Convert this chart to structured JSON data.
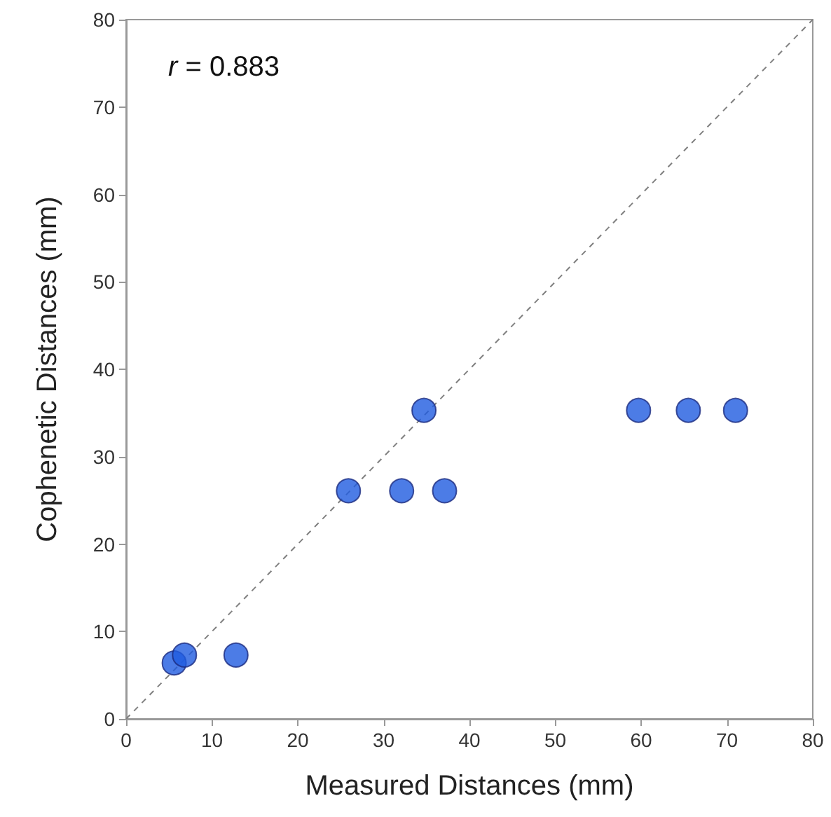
{
  "chart_data": {
    "type": "scatter",
    "xlabel": "Measured Distances (mm)",
    "ylabel": "Cophenetic Distances (mm)",
    "annotations": [
      "r = 0.883"
    ],
    "xlim": [
      0,
      80
    ],
    "ylim": [
      0,
      80
    ],
    "xticks": [
      0,
      10,
      20,
      30,
      40,
      50,
      60,
      70,
      80
    ],
    "yticks": [
      0,
      10,
      20,
      30,
      40,
      50,
      60,
      70,
      80
    ],
    "grid": false,
    "marker": "circle",
    "series": [
      {
        "color": "#1f5be0",
        "x": [
          5.6,
          6.8,
          12.8,
          25.9,
          32.1,
          37.1,
          34.7,
          59.7,
          65.5,
          71.0
        ],
        "values": [
          6.4,
          7.3,
          7.3,
          26.1,
          26.1,
          26.1,
          35.3,
          35.3,
          35.3,
          35.3
        ]
      },
      {
        "type": "line",
        "color": "#808080",
        "line_style": "dashed",
        "marker": "none",
        "x": [
          0,
          80
        ],
        "values": [
          0,
          80
        ]
      }
    ]
  }
}
